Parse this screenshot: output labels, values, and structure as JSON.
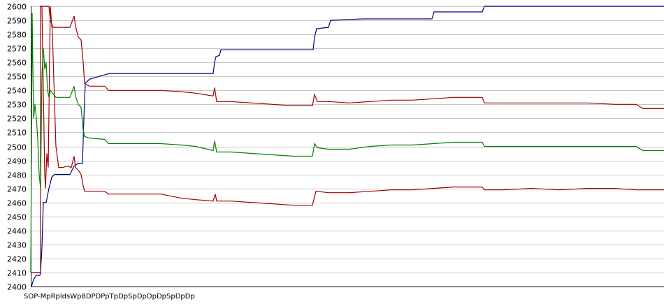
{
  "chart_data": {
    "type": "line",
    "title": "",
    "xlabel": "",
    "ylabel": "",
    "ylim": [
      2400,
      2600
    ],
    "yticks": [
      2400,
      2410,
      2420,
      2430,
      2440,
      2450,
      2460,
      2470,
      2480,
      2490,
      2500,
      2510,
      2520,
      2530,
      2540,
      2550,
      2560,
      2570,
      2580,
      2590,
      2600
    ],
    "grid": true,
    "legend": "none",
    "x": [
      0,
      2,
      4,
      6,
      8,
      10,
      12,
      14,
      18,
      22,
      26,
      30,
      34,
      40,
      50,
      60,
      70,
      80,
      90,
      100,
      110,
      120,
      130,
      150,
      170,
      200,
      230,
      260,
      290,
      300,
      310,
      330,
      360,
      390,
      420,
      440,
      450,
      455,
      470,
      500,
      530,
      560,
      590,
      610,
      620,
      650,
      680,
      690,
      700,
      750,
      800,
      850,
      880,
      900,
      910,
      920,
      940
    ],
    "series": [
      {
        "color": "#000080",
        "values": [
          2400,
          2400,
          2404,
          2408,
          2408,
          2408,
          2410,
          2425,
          2460,
          2460,
          2470,
          2478,
          2480,
          2480,
          2480,
          2480,
          2480,
          2485,
          2488,
          2488,
          2488,
          2488,
          2545,
          2552,
          2552,
          2552,
          2552,
          2552,
          2552,
          2564,
          2569,
          2569,
          2569,
          2569,
          2569,
          2569,
          2569,
          2584,
          2590,
          2590,
          2590,
          2590,
          2590,
          2595,
          2595,
          2596,
          2596,
          2599,
          2599,
          2599,
          2599,
          2599,
          2599,
          2599,
          2599,
          2599,
          2599
        ]
      },
      {
        "color": "#a00000",
        "values": [
          2400,
          2400,
          2400,
          2400,
          2400,
          2400,
          2400,
          2400,
          2400,
          2400,
          2400,
          2400,
          2400,
          2400,
          2400,
          2400,
          2400,
          2400,
          2400,
          2400,
          2400,
          2400,
          2400,
          2400,
          2400,
          2400,
          2400,
          2400,
          2400,
          2400,
          2400,
          2400,
          2400,
          2400,
          2400,
          2400,
          2400,
          2400,
          2400,
          2400,
          2400,
          2400,
          2400,
          2400,
          2400,
          2400,
          2400,
          2400,
          2400,
          2400,
          2400,
          2400,
          2400,
          2400,
          2400,
          2400,
          2400
        ]
      },
      {
        "color": "#a00000",
        "values": [
          2600,
          2600,
          2600,
          2600,
          2600,
          2600,
          2600,
          2600,
          2600,
          2600,
          2600,
          2600,
          2600,
          2600,
          2600,
          2600,
          2600,
          2600,
          2600,
          2600,
          2600,
          2600,
          2600,
          2600,
          2600,
          2600,
          2600,
          2600,
          2600,
          2600,
          2600,
          2600,
          2600,
          2600,
          2600,
          2600,
          2600,
          2600,
          2600,
          2600,
          2600,
          2600,
          2600,
          2600,
          2600,
          2600,
          2600,
          2600,
          2600,
          2600,
          2600,
          2600,
          2600,
          2600,
          2600,
          2600,
          2600
        ]
      }
    ]
  },
  "real_series": [
    {
      "name_hidden": true,
      "color": "#000080",
      "points": [
        [
          45,
          2400
        ],
        [
          48,
          2405
        ],
        [
          52,
          2408
        ],
        [
          57,
          2408
        ],
        [
          58,
          2410
        ],
        [
          60,
          2428
        ],
        [
          62,
          2460
        ],
        [
          66,
          2460
        ],
        [
          70,
          2470
        ],
        [
          74,
          2478
        ],
        [
          78,
          2480
        ],
        [
          100,
          2480
        ],
        [
          104,
          2484
        ],
        [
          106,
          2486
        ],
        [
          112,
          2488
        ],
        [
          118,
          2488
        ],
        [
          120,
          2520
        ],
        [
          122,
          2545
        ],
        [
          128,
          2548
        ],
        [
          156,
          2552
        ],
        [
          230,
          2552
        ],
        [
          305,
          2552
        ],
        [
          307,
          2560
        ],
        [
          309,
          2564
        ],
        [
          314,
          2565
        ],
        [
          316,
          2569
        ],
        [
          380,
          2569
        ],
        [
          448,
          2569
        ],
        [
          450,
          2578
        ],
        [
          453,
          2584
        ],
        [
          470,
          2585
        ],
        [
          473,
          2590
        ],
        [
          520,
          2591
        ],
        [
          618,
          2591
        ],
        [
          621,
          2596
        ],
        [
          690,
          2596
        ],
        [
          693,
          2600
        ],
        [
          950,
          2600
        ]
      ]
    },
    {
      "color": "#a00000",
      "points": [
        [
          45,
          2410
        ],
        [
          55,
          2410
        ],
        [
          58,
          2410
        ],
        [
          58,
          2600
        ],
        [
          60,
          2600
        ],
        [
          64,
          2480
        ],
        [
          65,
          2470
        ],
        [
          67,
          2495
        ],
        [
          69,
          2485
        ],
        [
          72,
          2600
        ],
        [
          75,
          2580
        ],
        [
          80,
          2500
        ],
        [
          84,
          2485
        ],
        [
          90,
          2485
        ],
        [
          96,
          2486
        ],
        [
          102,
          2485
        ],
        [
          106,
          2493
        ],
        [
          108,
          2485
        ],
        [
          112,
          2483
        ],
        [
          116,
          2480
        ],
        [
          119,
          2472
        ],
        [
          121,
          2468
        ],
        [
          125,
          2468
        ],
        [
          135,
          2468
        ],
        [
          150,
          2468
        ],
        [
          155,
          2466
        ],
        [
          160,
          2466
        ],
        [
          180,
          2466
        ],
        [
          200,
          2466
        ],
        [
          230,
          2466
        ],
        [
          260,
          2463
        ],
        [
          280,
          2462
        ],
        [
          305,
          2461
        ],
        [
          308,
          2466
        ],
        [
          310,
          2461
        ],
        [
          330,
          2461
        ],
        [
          360,
          2460
        ],
        [
          390,
          2459
        ],
        [
          420,
          2458
        ],
        [
          447,
          2458
        ],
        [
          450,
          2464
        ],
        [
          452,
          2468
        ],
        [
          470,
          2467
        ],
        [
          500,
          2467
        ],
        [
          530,
          2468
        ],
        [
          560,
          2469
        ],
        [
          590,
          2469
        ],
        [
          620,
          2470
        ],
        [
          650,
          2471
        ],
        [
          690,
          2471
        ],
        [
          693,
          2469
        ],
        [
          720,
          2469
        ],
        [
          760,
          2470
        ],
        [
          800,
          2469
        ],
        [
          840,
          2470
        ],
        [
          880,
          2470
        ],
        [
          910,
          2469
        ],
        [
          930,
          2469
        ],
        [
          950,
          2469
        ]
      ]
    },
    {
      "color": "#a00000",
      "points": [
        [
          57,
          2600
        ],
        [
          60,
          2600
        ],
        [
          62,
          2600
        ],
        [
          65,
          2600
        ],
        [
          68,
          2600
        ],
        [
          70,
          2600
        ],
        [
          72,
          2590
        ],
        [
          76,
          2585
        ],
        [
          80,
          2585
        ],
        [
          90,
          2585
        ],
        [
          100,
          2585
        ],
        [
          106,
          2593
        ],
        [
          108,
          2586
        ],
        [
          112,
          2578
        ],
        [
          116,
          2576
        ],
        [
          119,
          2560
        ],
        [
          121,
          2545
        ],
        [
          128,
          2543
        ],
        [
          150,
          2543
        ],
        [
          155,
          2540
        ],
        [
          180,
          2540
        ],
        [
          230,
          2540
        ],
        [
          260,
          2539
        ],
        [
          280,
          2538
        ],
        [
          305,
          2536
        ],
        [
          307,
          2542
        ],
        [
          310,
          2532
        ],
        [
          330,
          2532
        ],
        [
          360,
          2531
        ],
        [
          390,
          2530
        ],
        [
          420,
          2529
        ],
        [
          447,
          2529
        ],
        [
          450,
          2537
        ],
        [
          454,
          2532
        ],
        [
          470,
          2532
        ],
        [
          500,
          2531
        ],
        [
          530,
          2532
        ],
        [
          560,
          2533
        ],
        [
          590,
          2533
        ],
        [
          620,
          2534
        ],
        [
          650,
          2535
        ],
        [
          690,
          2535
        ],
        [
          693,
          2531
        ],
        [
          720,
          2531
        ],
        [
          760,
          2531
        ],
        [
          800,
          2531
        ],
        [
          840,
          2531
        ],
        [
          880,
          2530
        ],
        [
          910,
          2530
        ],
        [
          920,
          2527
        ],
        [
          950,
          2527
        ]
      ]
    },
    {
      "color": "#008000",
      "points": [
        [
          44,
          2410
        ],
        [
          46,
          2595
        ],
        [
          48,
          2520
        ],
        [
          50,
          2530
        ],
        [
          52,
          2520
        ],
        [
          54,
          2505
        ],
        [
          56,
          2480
        ],
        [
          58,
          2470
        ],
        [
          60,
          2550
        ],
        [
          62,
          2570
        ],
        [
          64,
          2555
        ],
        [
          66,
          2560
        ],
        [
          68,
          2540
        ],
        [
          70,
          2535
        ],
        [
          72,
          2540
        ],
        [
          80,
          2535
        ],
        [
          90,
          2535
        ],
        [
          100,
          2535
        ],
        [
          106,
          2543
        ],
        [
          108,
          2536
        ],
        [
          112,
          2530
        ],
        [
          116,
          2528
        ],
        [
          119,
          2512
        ],
        [
          121,
          2507
        ],
        [
          128,
          2506
        ],
        [
          150,
          2505
        ],
        [
          155,
          2502
        ],
        [
          180,
          2502
        ],
        [
          230,
          2502
        ],
        [
          260,
          2501
        ],
        [
          280,
          2500
        ],
        [
          305,
          2497
        ],
        [
          307,
          2504
        ],
        [
          310,
          2496
        ],
        [
          330,
          2496
        ],
        [
          360,
          2495
        ],
        [
          390,
          2494
        ],
        [
          420,
          2493
        ],
        [
          447,
          2493
        ],
        [
          450,
          2502
        ],
        [
          454,
          2499
        ],
        [
          470,
          2498
        ],
        [
          500,
          2498
        ],
        [
          530,
          2500
        ],
        [
          560,
          2501
        ],
        [
          590,
          2501
        ],
        [
          620,
          2502
        ],
        [
          650,
          2503
        ],
        [
          690,
          2503
        ],
        [
          693,
          2500
        ],
        [
          720,
          2500
        ],
        [
          760,
          2500
        ],
        [
          800,
          2500
        ],
        [
          840,
          2500
        ],
        [
          880,
          2500
        ],
        [
          910,
          2500
        ],
        [
          920,
          2497
        ],
        [
          950,
          2497
        ]
      ]
    }
  ],
  "x_tick_text": "SOP-MpRpldsWp8DPDPpTpDpSpDpDpDpSpDpDp"
}
